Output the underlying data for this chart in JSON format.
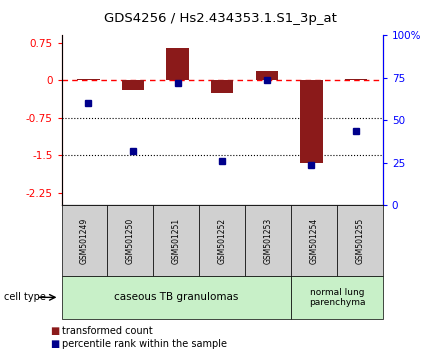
{
  "title": "GDS4256 / Hs2.434353.1.S1_3p_at",
  "samples": [
    "GSM501249",
    "GSM501250",
    "GSM501251",
    "GSM501252",
    "GSM501253",
    "GSM501254",
    "GSM501255"
  ],
  "red_values": [
    0.03,
    -0.2,
    0.65,
    -0.25,
    0.18,
    -1.65,
    0.02
  ],
  "blue_values": [
    60,
    32,
    72,
    26,
    74,
    24,
    44
  ],
  "ylim_left": [
    -2.5,
    0.9
  ],
  "ylim_right": [
    0,
    100
  ],
  "yticks_left": [
    0.75,
    0,
    -0.75,
    -1.5,
    -2.25
  ],
  "yticks_right": [
    100,
    75,
    50,
    25,
    0
  ],
  "group1_label": "caseous TB granulomas",
  "group1_samples": 5,
  "group2_label": "normal lung\nparenchyma",
  "group2_samples": 2,
  "cell_type_label": "cell type",
  "legend_red": "transformed count",
  "legend_blue": "percentile rank within the sample",
  "bar_color": "#8B1A1A",
  "dot_color": "#00008B",
  "bar_width": 0.5,
  "bg_color": "#ffffff",
  "group1_bg": "#c8f0c8",
  "group2_bg": "#c8f0c8",
  "sample_box_bg": "#d0d0d0"
}
